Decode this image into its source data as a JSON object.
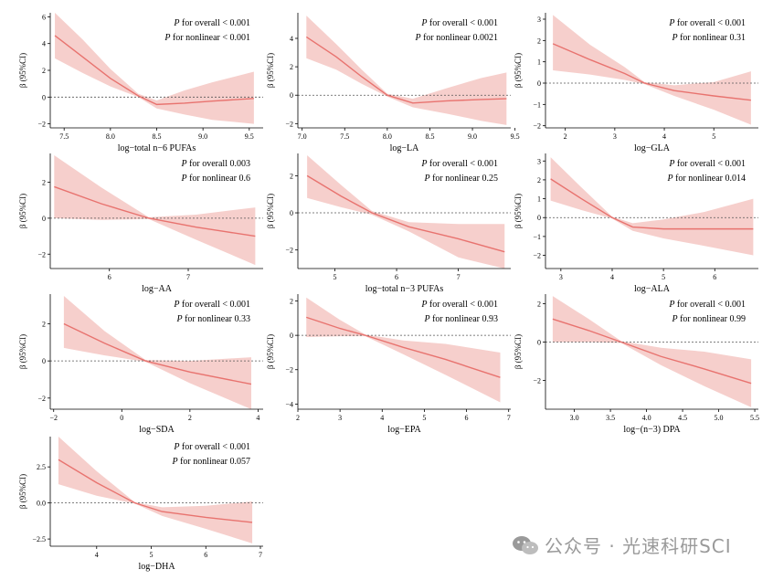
{
  "figure": {
    "ylabel": "β (95%CI)",
    "p_overall_label": "for overall",
    "p_nonlinear_label": "for nonlinear",
    "p_symbol": "P"
  },
  "watermark": {
    "text": "公众号 · 光速科研SCI",
    "icon": "wechat-icon"
  },
  "colors": {
    "line": "#e8736f",
    "band": "#f6cfcc",
    "ref": "#555555",
    "axis": "#000000"
  },
  "chart_data": [
    {
      "type": "line",
      "xlabel": "log−total n−6 PUFAs",
      "p_overall": "< 0.001",
      "p_nonlinear": "< 0.001",
      "xlim": [
        7.35,
        9.65
      ],
      "ylim": [
        -2.3,
        6.3
      ],
      "xticks": [
        7.5,
        8.0,
        8.5,
        9.0,
        9.5
      ],
      "xticklabels": [
        "7.5",
        "8.0",
        "8.5",
        "9.0",
        "9.5"
      ],
      "yticks": [
        -2,
        0,
        2,
        4,
        6
      ],
      "yticklabels": [
        "−2",
        "0",
        "2",
        "4",
        "6"
      ],
      "ref": 0,
      "x": [
        7.4,
        7.7,
        8.0,
        8.3,
        8.5,
        8.8,
        9.1,
        9.55
      ],
      "y": [
        4.6,
        3.0,
        1.4,
        0.1,
        -0.55,
        -0.45,
        -0.3,
        -0.1
      ],
      "lower": [
        2.9,
        1.8,
        0.8,
        0.0,
        -0.85,
        -1.3,
        -1.7,
        -2.0
      ],
      "upper": [
        6.3,
        4.3,
        2.1,
        0.25,
        -0.25,
        0.5,
        1.1,
        1.9
      ]
    },
    {
      "type": "line",
      "xlabel": "log−LA",
      "p_overall": "< 0.001",
      "p_nonlinear": "0.0021",
      "xlim": [
        6.95,
        9.45
      ],
      "ylim": [
        -2.3,
        5.8
      ],
      "xticks": [
        7.0,
        7.5,
        8.0,
        8.5,
        9.0,
        9.5
      ],
      "xticklabels": [
        "7.0",
        "7.5",
        "8.0",
        "8.5",
        "9.0",
        "9.5"
      ],
      "yticks": [
        -2,
        0,
        2,
        4
      ],
      "yticklabels": [
        "−2",
        "0",
        "2",
        "4"
      ],
      "ref": 0,
      "x": [
        7.05,
        7.4,
        7.7,
        8.0,
        8.3,
        8.7,
        9.1,
        9.4
      ],
      "y": [
        4.1,
        2.7,
        1.3,
        0.0,
        -0.55,
        -0.4,
        -0.3,
        -0.25
      ],
      "lower": [
        2.6,
        1.8,
        0.8,
        -0.1,
        -0.85,
        -1.3,
        -1.8,
        -2.1
      ],
      "upper": [
        5.6,
        3.6,
        1.8,
        0.1,
        -0.25,
        0.5,
        1.2,
        1.6
      ]
    },
    {
      "type": "line",
      "xlabel": "log−GLA",
      "p_overall": "< 0.001",
      "p_nonlinear": "0.31",
      "xlim": [
        1.6,
        5.9
      ],
      "ylim": [
        -2.1,
        3.3
      ],
      "xticks": [
        2,
        3,
        4,
        5
      ],
      "xticklabels": [
        "2",
        "3",
        "4",
        "5"
      ],
      "yticks": [
        -2,
        -1,
        0,
        1,
        2,
        3
      ],
      "yticklabels": [
        "−2",
        "−1",
        "0",
        "1",
        "2",
        "3"
      ],
      "ref": 0,
      "x": [
        1.75,
        2.5,
        3.2,
        3.6,
        4.2,
        5.0,
        5.75
      ],
      "y": [
        1.85,
        1.1,
        0.45,
        0.0,
        -0.35,
        -0.6,
        -0.8
      ],
      "lower": [
        0.6,
        0.4,
        0.15,
        -0.05,
        -0.6,
        -1.25,
        -1.95
      ],
      "upper": [
        3.2,
        1.8,
        0.75,
        0.05,
        -0.1,
        0.05,
        0.55
      ]
    },
    {
      "type": "line",
      "xlabel": "log−AA",
      "p_overall": "0.003",
      "p_nonlinear": "0.6",
      "xlim": [
        5.25,
        7.95
      ],
      "ylim": [
        -2.8,
        3.6
      ],
      "xticks": [
        6,
        7
      ],
      "xticklabels": [
        "6",
        "7"
      ],
      "yticks": [
        -2,
        0,
        2
      ],
      "yticklabels": [
        "−2",
        "0",
        "2"
      ],
      "ref": 0,
      "x": [
        5.3,
        5.9,
        6.5,
        7.1,
        7.85
      ],
      "y": [
        1.75,
        0.8,
        0.0,
        -0.5,
        -1.0
      ],
      "lower": [
        0.0,
        -0.1,
        -0.05,
        -1.2,
        -2.6
      ],
      "upper": [
        3.5,
        1.7,
        0.05,
        0.2,
        0.6
      ]
    },
    {
      "type": "line",
      "xlabel": "log−total n−3 PUFAs",
      "p_overall": "< 0.001",
      "p_nonlinear": "0.25",
      "xlim": [
        4.4,
        7.85
      ],
      "ylim": [
        -3.0,
        3.2
      ],
      "xticks": [
        5,
        6,
        7
      ],
      "xticklabels": [
        "5",
        "6",
        "7"
      ],
      "yticks": [
        -2,
        0,
        2
      ],
      "yticklabels": [
        "−2",
        "0",
        "2"
      ],
      "ref": 0,
      "x": [
        4.55,
        5.1,
        5.6,
        6.2,
        7.0,
        7.75
      ],
      "y": [
        2.0,
        0.9,
        0.0,
        -0.75,
        -1.4,
        -2.1
      ],
      "lower": [
        0.8,
        0.3,
        -0.1,
        -1.0,
        -2.4,
        -3.0
      ],
      "upper": [
        3.1,
        1.5,
        0.1,
        -0.5,
        -0.6,
        -0.6
      ]
    },
    {
      "type": "line",
      "xlabel": "log−ALA",
      "p_overall": "< 0.001",
      "p_nonlinear": "0.014",
      "xlim": [
        2.7,
        6.85
      ],
      "ylim": [
        -2.7,
        3.4
      ],
      "xticks": [
        3,
        4,
        5,
        6
      ],
      "xticklabels": [
        "3",
        "4",
        "5",
        "6"
      ],
      "yticks": [
        -2,
        -1,
        0,
        1,
        2,
        3
      ],
      "yticklabels": [
        "−2",
        "−1",
        "0",
        "1",
        "2",
        "3"
      ],
      "ref": 0,
      "x": [
        2.8,
        3.4,
        4.0,
        4.4,
        5.0,
        5.8,
        6.75
      ],
      "y": [
        2.05,
        1.0,
        0.0,
        -0.5,
        -0.6,
        -0.6,
        -0.6
      ],
      "lower": [
        0.9,
        0.4,
        -0.05,
        -0.7,
        -1.1,
        -1.5,
        -2.0
      ],
      "upper": [
        3.2,
        1.6,
        0.05,
        -0.3,
        -0.1,
        0.3,
        1.0
      ]
    },
    {
      "type": "line",
      "xlabel": "log−SDA",
      "p_overall": "< 0.001",
      "p_nonlinear": "0.33",
      "xlim": [
        -2.1,
        4.15
      ],
      "ylim": [
        -2.6,
        3.6
      ],
      "xticks": [
        -2,
        0,
        2,
        4
      ],
      "xticklabels": [
        "−2",
        "0",
        "2",
        "4"
      ],
      "yticks": [
        -2,
        0,
        2
      ],
      "yticklabels": [
        "−2",
        "0",
        "2"
      ],
      "ref": 0,
      "x": [
        -1.7,
        -0.5,
        0.7,
        2.0,
        3.8
      ],
      "y": [
        2.0,
        0.95,
        0.0,
        -0.6,
        -1.25
      ],
      "lower": [
        0.7,
        0.3,
        -0.05,
        -1.2,
        -2.6
      ],
      "upper": [
        3.5,
        1.6,
        0.05,
        0.0,
        0.2
      ]
    },
    {
      "type": "line",
      "xlabel": "log−EPA",
      "p_overall": "< 0.001",
      "p_nonlinear": "0.93",
      "xlim": [
        2.0,
        7.05
      ],
      "ylim": [
        -4.3,
        2.4
      ],
      "xticks": [
        2,
        3,
        4,
        5,
        6,
        7
      ],
      "xticklabels": [
        "2",
        "3",
        "4",
        "5",
        "6",
        "7"
      ],
      "yticks": [
        -4,
        -2,
        0,
        2
      ],
      "yticklabels": [
        "−4",
        "−2",
        "0",
        "2"
      ],
      "ref": 0,
      "x": [
        2.2,
        3.0,
        3.6,
        4.5,
        5.5,
        6.8
      ],
      "y": [
        1.05,
        0.4,
        0.0,
        -0.7,
        -1.4,
        -2.45
      ],
      "lower": [
        -0.1,
        -0.05,
        -0.05,
        -1.1,
        -2.3,
        -3.9
      ],
      "upper": [
        2.2,
        0.9,
        0.05,
        -0.3,
        -0.5,
        -1.0
      ]
    },
    {
      "type": "line",
      "xlabel": "log−(n−3) DPA",
      "p_overall": "< 0.001",
      "p_nonlinear": "0.99",
      "xlim": [
        2.6,
        5.55
      ],
      "ylim": [
        -3.5,
        2.5
      ],
      "xticks": [
        3.0,
        3.5,
        4.0,
        4.5,
        5.0,
        5.5
      ],
      "xticklabels": [
        "3.0",
        "3.5",
        "4.0",
        "4.5",
        "5.0",
        "5.5"
      ],
      "yticks": [
        -2,
        0,
        2
      ],
      "yticklabels": [
        "−2",
        "0",
        "2"
      ],
      "ref": 0,
      "x": [
        2.7,
        3.2,
        3.65,
        4.2,
        4.8,
        5.45
      ],
      "y": [
        1.2,
        0.6,
        0.0,
        -0.75,
        -1.4,
        -2.15
      ],
      "lower": [
        0.0,
        0.0,
        -0.05,
        -1.2,
        -2.3,
        -3.4
      ],
      "upper": [
        2.4,
        1.2,
        0.05,
        -0.3,
        -0.5,
        -0.9
      ]
    },
    {
      "type": "line",
      "xlabel": "log−DHA",
      "p_overall": "< 0.001",
      "p_nonlinear": "0.057",
      "xlim": [
        3.15,
        7.05
      ],
      "ylim": [
        -3.0,
        4.6
      ],
      "xticks": [
        4,
        5,
        6,
        7
      ],
      "xticklabels": [
        "4",
        "5",
        "6",
        "7"
      ],
      "yticks": [
        -2.5,
        0,
        2.5
      ],
      "yticklabels": [
        "−2.5",
        "0.0",
        "2.5"
      ],
      "ref": 0,
      "x": [
        3.3,
        4.0,
        4.7,
        5.2,
        6.0,
        6.85
      ],
      "y": [
        3.0,
        1.4,
        0.0,
        -0.6,
        -1.0,
        -1.35
      ],
      "lower": [
        1.3,
        0.5,
        -0.05,
        -0.9,
        -1.8,
        -2.8
      ],
      "upper": [
        4.6,
        2.2,
        0.05,
        -0.3,
        -0.2,
        0.1
      ]
    }
  ]
}
